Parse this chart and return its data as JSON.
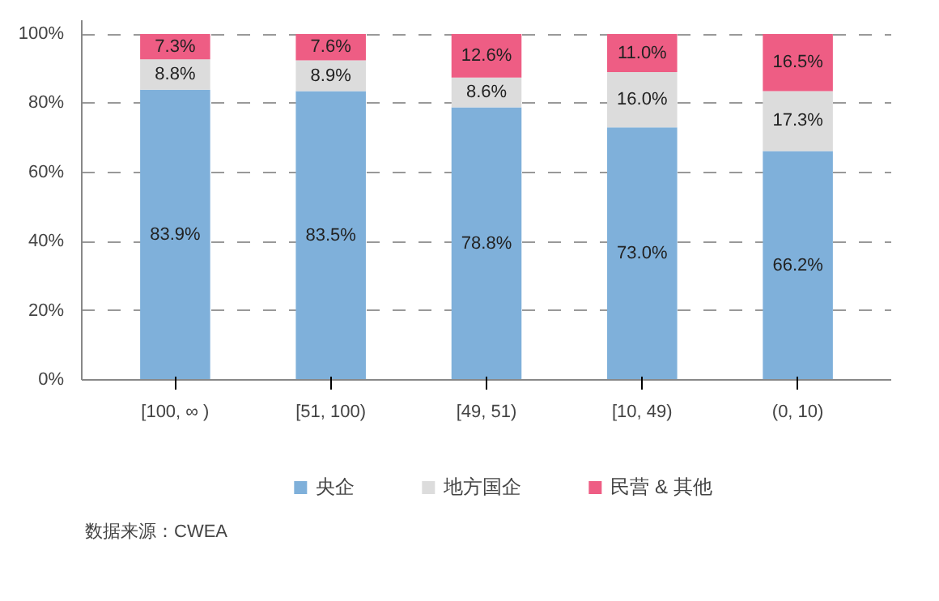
{
  "chart_data": {
    "type": "bar",
    "stacked": true,
    "categories": [
      "[100, ∞ )",
      "[51, 100)",
      "[49, 51)",
      "[10, 49)",
      "(0, 10)"
    ],
    "series": [
      {
        "name": "央企",
        "color": "#7fb0da",
        "values": [
          83.9,
          83.5,
          78.8,
          73.0,
          66.2
        ],
        "value_labels": [
          "83.9%",
          "83.5%",
          "78.8%",
          "73.0%",
          "66.2%"
        ]
      },
      {
        "name": "地方国企",
        "color": "#dcdcdc",
        "values": [
          8.8,
          8.9,
          8.6,
          16.0,
          17.3
        ],
        "value_labels": [
          "8.8%",
          "8.9%",
          "8.6%",
          "16.0%",
          "17.3%"
        ]
      },
      {
        "name": "民营 & 其他",
        "color": "#ee5d84",
        "values": [
          7.3,
          7.6,
          12.6,
          11.0,
          16.5
        ],
        "value_labels": [
          "7.3%",
          "7.6%",
          "12.6%",
          "11.0%",
          "16.5%"
        ]
      }
    ],
    "ylim": [
      0,
      104
    ],
    "yticks": [
      {
        "value": 0,
        "label": "0%"
      },
      {
        "value": 20,
        "label": "20%"
      },
      {
        "value": 40,
        "label": "40%"
      },
      {
        "value": 60,
        "label": "60%"
      },
      {
        "value": 80,
        "label": "80%"
      },
      {
        "value": 100,
        "label": "100%"
      }
    ],
    "grid": "y",
    "legend": "bottom",
    "annotations": [
      "数据来源：CWEA"
    ]
  }
}
